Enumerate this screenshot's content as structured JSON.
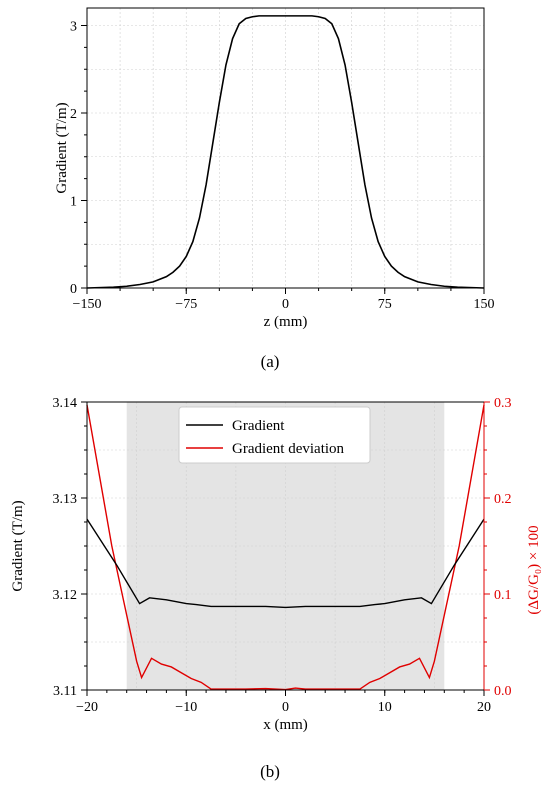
{
  "chart_data": [
    {
      "id": "a",
      "type": "line",
      "xlabel": "z (mm)",
      "ylabel": "Gradient (T/m)",
      "xlim": [
        -150,
        150
      ],
      "ylim": [
        0,
        3.2
      ],
      "xticks": [
        -150,
        -75,
        0,
        75,
        150
      ],
      "xtick_labels": [
        "−150",
        "−75",
        "0",
        "75",
        "150"
      ],
      "yticks": [
        0,
        1,
        2,
        3
      ],
      "ytick_labels": [
        "0",
        "1",
        "2",
        "3"
      ],
      "grid": true,
      "caption": "(a)",
      "series": [
        {
          "color": "#000000",
          "x": [
            -150,
            -130,
            -120,
            -110,
            -100,
            -90,
            -85,
            -80,
            -75,
            -70,
            -65,
            -60,
            -55,
            -50,
            -45,
            -40,
            -35,
            -30,
            -25,
            -20,
            -10,
            0,
            10,
            20,
            25,
            30,
            35,
            40,
            45,
            50,
            55,
            60,
            65,
            70,
            75,
            80,
            85,
            90,
            100,
            110,
            120,
            130,
            150
          ],
          "y": [
            0.0,
            0.01,
            0.02,
            0.04,
            0.07,
            0.13,
            0.18,
            0.25,
            0.36,
            0.53,
            0.8,
            1.18,
            1.65,
            2.12,
            2.55,
            2.85,
            3.02,
            3.08,
            3.1,
            3.11,
            3.11,
            3.11,
            3.11,
            3.11,
            3.1,
            3.08,
            3.02,
            2.85,
            2.55,
            2.12,
            1.65,
            1.18,
            0.8,
            0.53,
            0.36,
            0.25,
            0.18,
            0.13,
            0.07,
            0.04,
            0.02,
            0.01,
            0.0
          ]
        }
      ]
    },
    {
      "id": "b",
      "type": "line",
      "xlabel": "x (mm)",
      "ylabel": "Gradient (T/m)",
      "y2label": "(ΔG/G₀) × 100",
      "xlim": [
        -20,
        20
      ],
      "ylim": [
        3.11,
        3.14
      ],
      "y2lim": [
        0,
        0.3
      ],
      "xticks": [
        -20,
        -10,
        0,
        10,
        20
      ],
      "xtick_labels": [
        "−20",
        "−10",
        "0",
        "10",
        "20"
      ],
      "yticks": [
        3.11,
        3.12,
        3.13,
        3.14
      ],
      "ytick_labels": [
        "3.11",
        "3.12",
        "3.13",
        "3.14"
      ],
      "y2ticks": [
        0,
        0.1,
        0.2,
        0.3
      ],
      "y2tick_labels": [
        "0.0",
        "0.1",
        "0.2",
        "0.3"
      ],
      "shaded_region_x": [
        -16,
        16
      ],
      "grid": true,
      "legend": "top-center",
      "caption": "(b)",
      "series": [
        {
          "name": "Gradient",
          "color": "#000000",
          "axis": "left",
          "x": [
            -20,
            -17,
            -14.7,
            -13.7,
            -12,
            -10,
            -9,
            -7.5,
            -5,
            -2,
            0,
            2,
            5,
            7.5,
            9,
            10,
            12,
            13.7,
            14.7,
            17,
            20
          ],
          "y": [
            3.1278,
            3.123,
            3.119,
            3.1196,
            3.1194,
            3.119,
            3.1189,
            3.1187,
            3.1187,
            3.1187,
            3.1186,
            3.1187,
            3.1187,
            3.1187,
            3.1189,
            3.119,
            3.1194,
            3.1196,
            3.119,
            3.123,
            3.1278
          ]
        },
        {
          "name": "Gradient deviation",
          "color": "#e00000",
          "axis": "right",
          "x": [
            -20,
            -17.5,
            -15,
            -14.5,
            -13.5,
            -12.5,
            -11.5,
            -10.5,
            -9.5,
            -8.5,
            -7.5,
            -6,
            -4,
            -2,
            0,
            1,
            2,
            4,
            6,
            7.5,
            8.5,
            9.5,
            10.5,
            11.5,
            12.5,
            13.5,
            14.5,
            15,
            17.5,
            20
          ],
          "y": [
            0.297,
            0.15,
            0.03,
            0.013,
            0.033,
            0.027,
            0.024,
            0.018,
            0.012,
            0.008,
            0.001,
            0.001,
            0.001,
            0.0015,
            0.0005,
            0.002,
            0.001,
            0.001,
            0.001,
            0.001,
            0.008,
            0.012,
            0.018,
            0.024,
            0.027,
            0.033,
            0.013,
            0.03,
            0.15,
            0.297
          ]
        }
      ]
    }
  ]
}
